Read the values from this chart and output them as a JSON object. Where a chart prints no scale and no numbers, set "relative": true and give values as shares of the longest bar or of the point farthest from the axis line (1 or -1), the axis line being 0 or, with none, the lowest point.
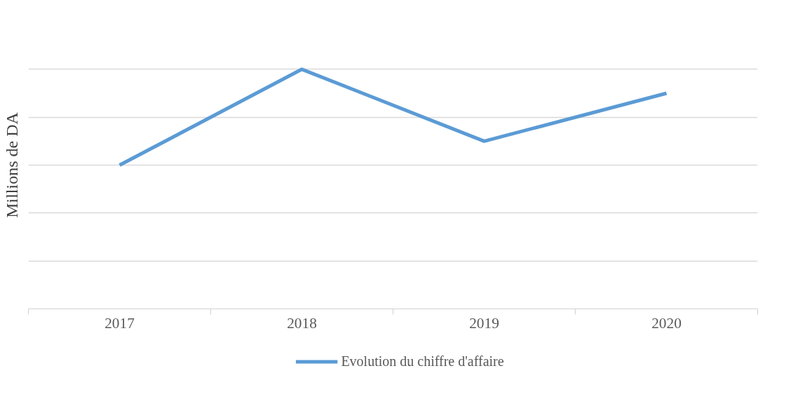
{
  "chart_data": {
    "type": "line",
    "ylabel": "Millions de DA",
    "categories": [
      "2017",
      "2018",
      "2019",
      "2020"
    ],
    "relative": true,
    "grid": "y",
    "legend": "bottom",
    "series": [
      {
        "name": "Evolution du chiffre d'affaire",
        "color": "#5b9bd5",
        "values": [
          0.6,
          1,
          0.7,
          0.9
        ]
      }
    ]
  }
}
